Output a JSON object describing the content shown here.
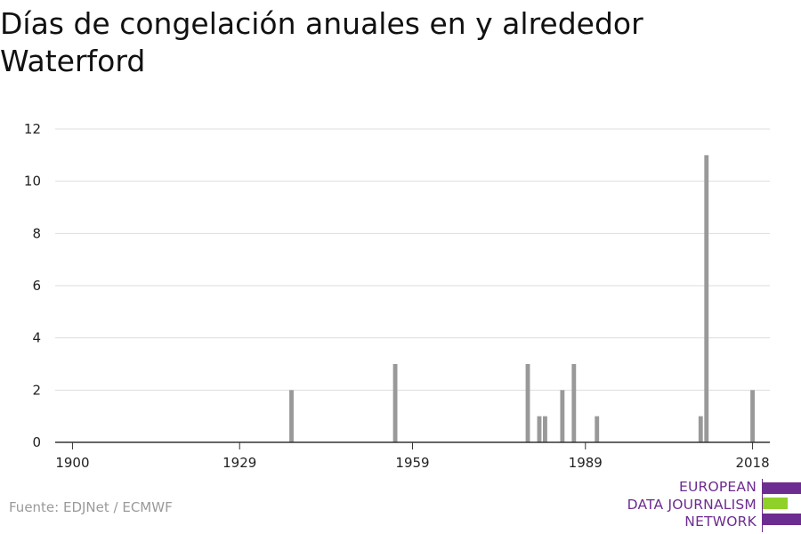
{
  "title": "Días de congelación anuales en y alrededor Waterford",
  "source": "Fuente: EDJNet / ECMWF",
  "logo": {
    "lines": [
      "EUROPEAN",
      "DATA JOURNALISM",
      "NETWORK"
    ],
    "colors": {
      "purple": "#6d2c8f",
      "green": "#8fd129"
    }
  },
  "chart_data": {
    "type": "bar",
    "title": "Días de congelación anuales en y alrededor Waterford",
    "xlabel": "",
    "ylabel": "",
    "x_ticks": [
      1900,
      1929,
      1959,
      1989,
      2018
    ],
    "y_ticks": [
      0,
      2,
      4,
      6,
      8,
      10,
      12
    ],
    "xlim": [
      1897,
      2021
    ],
    "ylim": [
      0,
      12
    ],
    "grid": true,
    "bar_color": "#999999",
    "series": [
      {
        "x": [
          1938,
          1956,
          1979,
          1981,
          1982,
          1985,
          1987,
          1991,
          2009,
          2010,
          2018
        ],
        "values": [
          2,
          3,
          3,
          1,
          1,
          2,
          3,
          1,
          1,
          11,
          2
        ]
      }
    ]
  }
}
